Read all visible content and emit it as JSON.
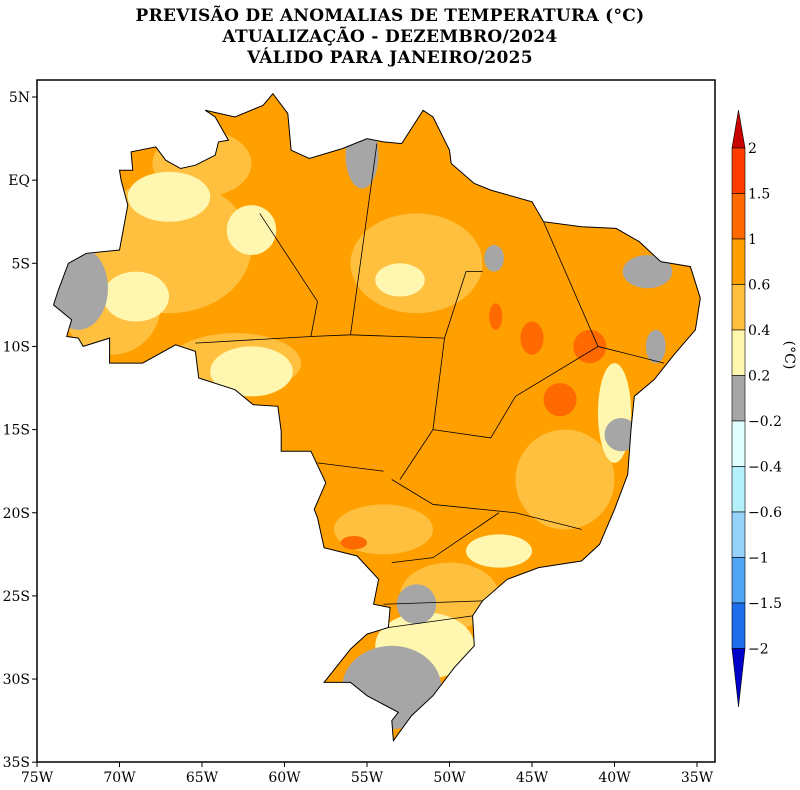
{
  "title": {
    "line1": "PREVISÃO DE ANOMALIAS DE TEMPERATURA (°C)",
    "line2": "ATUALIZAÇÃO - DEZEMBRO/2024",
    "line3": "VÁLIDO PARA JANEIRO/2025"
  },
  "axes": {
    "lon_ticks": [
      "75W",
      "70W",
      "65W",
      "60W",
      "55W",
      "50W",
      "45W",
      "40W",
      "35W"
    ],
    "lat_ticks": [
      "5N",
      "EQ",
      "5S",
      "10S",
      "15S",
      "20S",
      "25S",
      "30S",
      "35S"
    ],
    "lon_range": [
      -75,
      -35
    ],
    "lat_range": [
      -35,
      5
    ]
  },
  "colorbar": {
    "unit": "(°C)",
    "labels": [
      "2",
      "1.5",
      "1",
      "0.6",
      "0.4",
      "0.2",
      "-0.2",
      "-0.4",
      "-0.6",
      "-1",
      "-1.5",
      "-2"
    ],
    "colors": [
      "#c80000",
      "#ff3c00",
      "#ff6a00",
      "#ffa000",
      "#ffc040",
      "#fff7b0",
      "#a6a6a6",
      "#e0ffff",
      "#b4f0fa",
      "#96d2fa",
      "#50a5f5",
      "#1e6eeb",
      "#0000c8"
    ]
  }
}
